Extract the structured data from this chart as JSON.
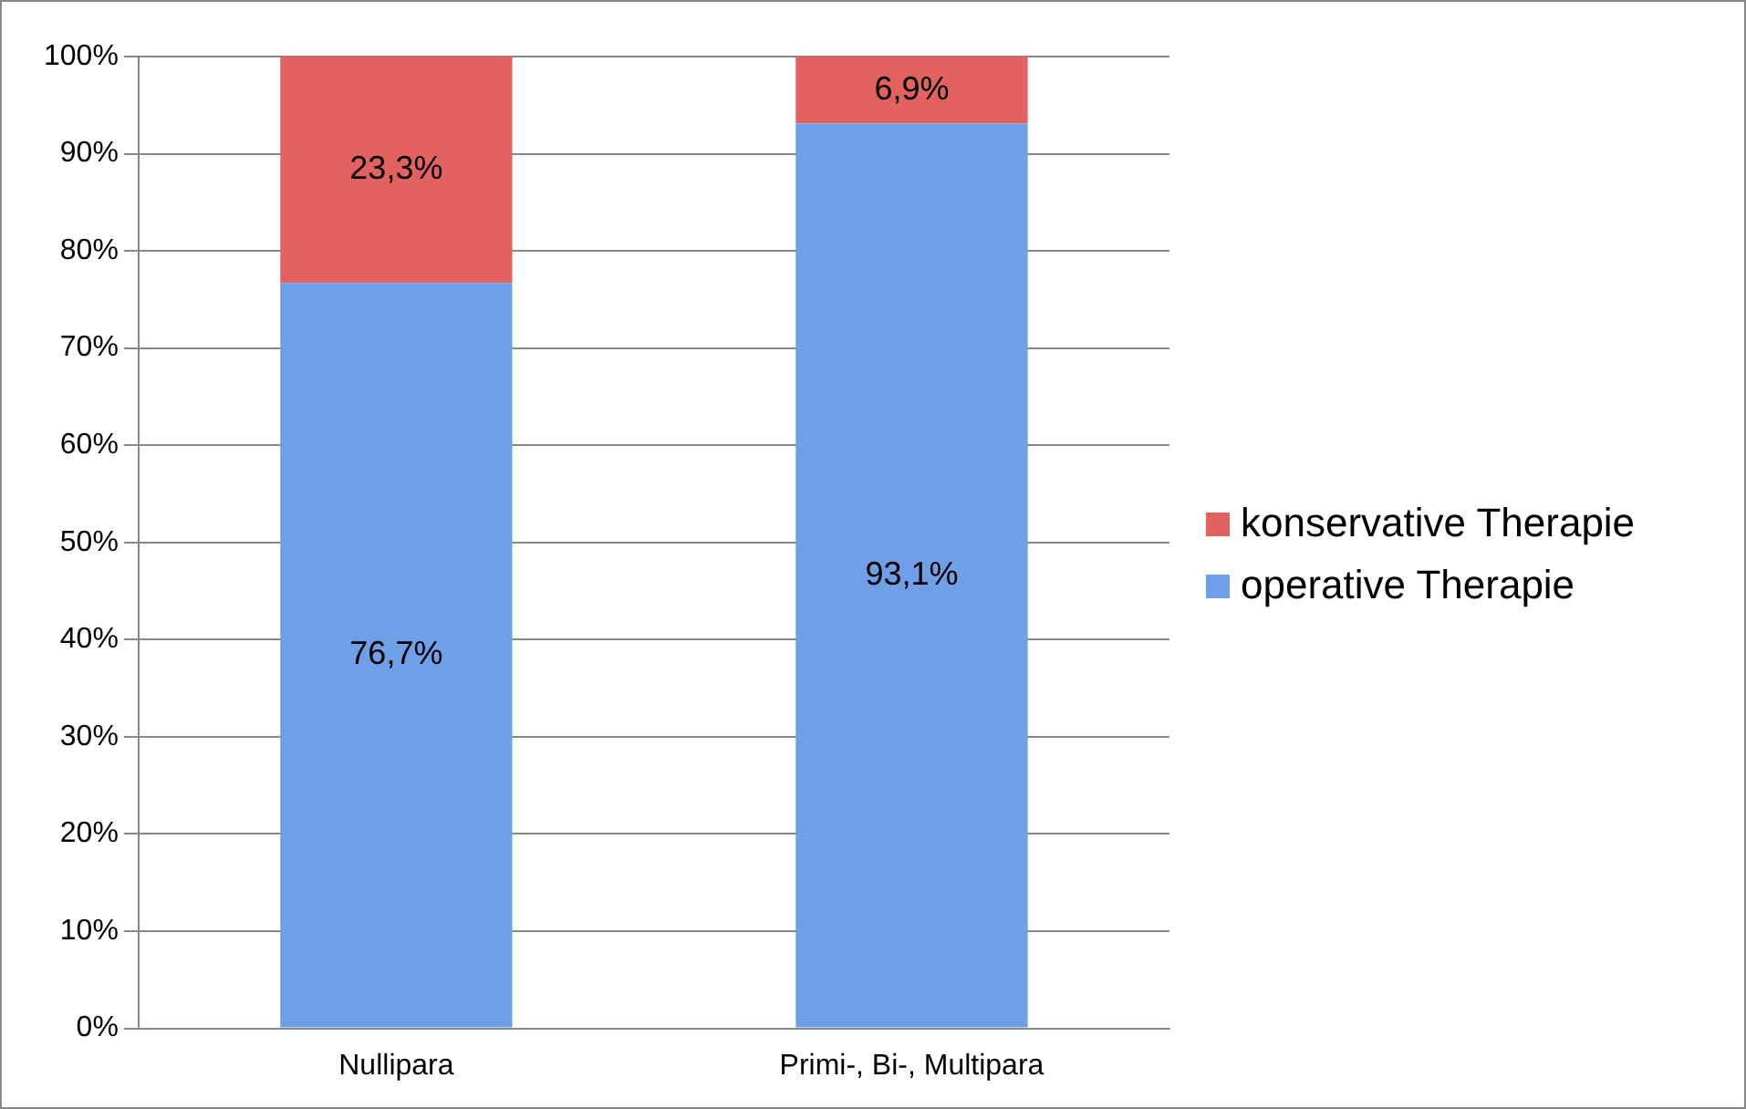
{
  "chart_data": {
    "type": "bar",
    "stacked": true,
    "categories": [
      "Nullipara",
      "Primi-, Bi-, Multipara"
    ],
    "series": [
      {
        "name": "operative Therapie",
        "color": "#6f9fe6",
        "values": [
          76.7,
          93.1
        ],
        "value_labels": [
          "76,7%",
          "93,1%"
        ]
      },
      {
        "name": "konservative Therapie",
        "color": "#e2625f",
        "values": [
          23.3,
          6.9
        ],
        "value_labels": [
          "23,3%",
          "6,9%"
        ]
      }
    ],
    "ylim": [
      0,
      100
    ],
    "yticks": [
      {
        "value": 0,
        "label": "0%"
      },
      {
        "value": 10,
        "label": "10%"
      },
      {
        "value": 20,
        "label": "20%"
      },
      {
        "value": 30,
        "label": "30%"
      },
      {
        "value": 40,
        "label": "40%"
      },
      {
        "value": 50,
        "label": "50%"
      },
      {
        "value": 60,
        "label": "60%"
      },
      {
        "value": 70,
        "label": "70%"
      },
      {
        "value": 80,
        "label": "80%"
      },
      {
        "value": 90,
        "label": "90%"
      },
      {
        "value": 100,
        "label": "100%"
      }
    ],
    "grid": "y",
    "legend": "right"
  }
}
